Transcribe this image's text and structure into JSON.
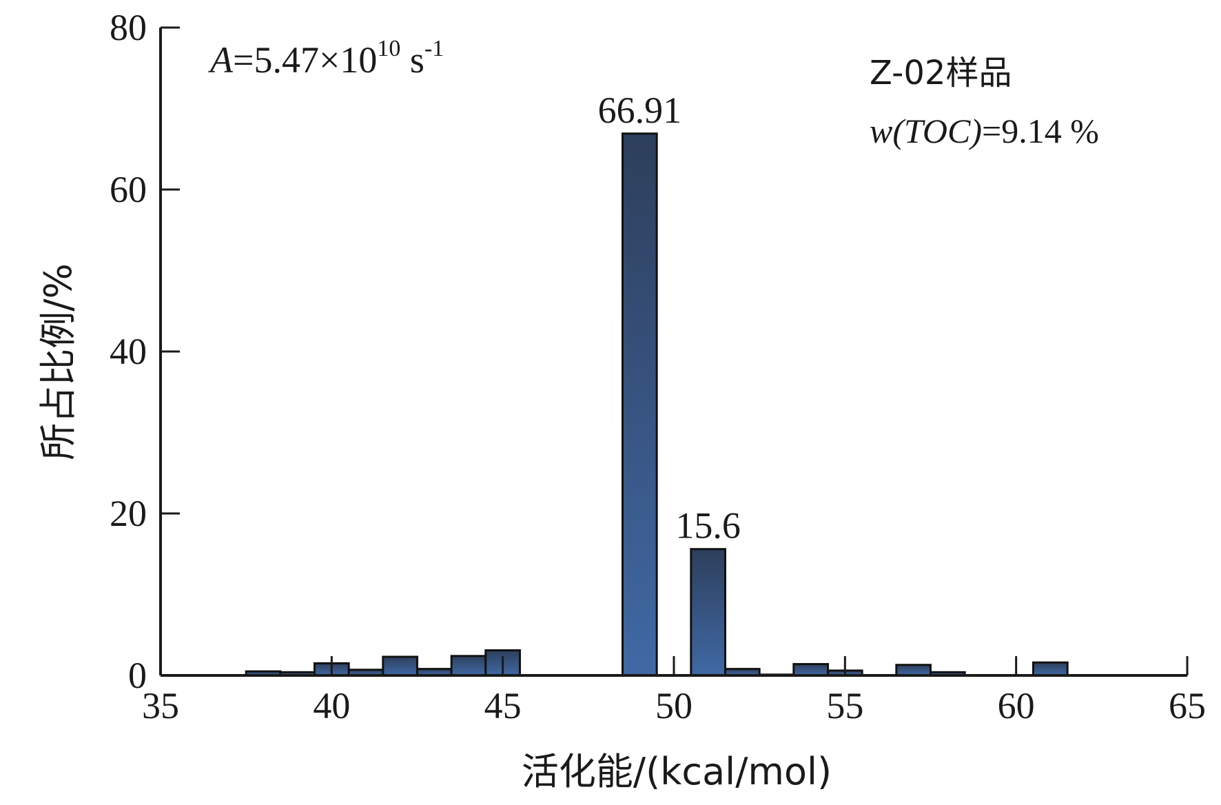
{
  "chart_data": {
    "type": "bar",
    "xlabel": "活化能/(kcal/mol)",
    "ylabel": "所占比例/%",
    "xlim": [
      35,
      65
    ],
    "ylim": [
      0,
      80
    ],
    "xticks": [
      35,
      40,
      45,
      50,
      55,
      60,
      65
    ],
    "yticks": [
      0,
      20,
      40,
      60,
      80
    ],
    "bar_width": 1,
    "bars": [
      {
        "x": 38,
        "value": 0.5
      },
      {
        "x": 39,
        "value": 0.4
      },
      {
        "x": 40,
        "value": 1.5
      },
      {
        "x": 41,
        "value": 0.7
      },
      {
        "x": 42,
        "value": 2.3
      },
      {
        "x": 43,
        "value": 0.8
      },
      {
        "x": 44,
        "value": 2.4
      },
      {
        "x": 45,
        "value": 3.1
      },
      {
        "x": 49,
        "value": 66.91,
        "label": "66.91"
      },
      {
        "x": 51,
        "value": 15.6,
        "label": "15.6"
      },
      {
        "x": 52,
        "value": 0.8
      },
      {
        "x": 53,
        "value": 0.1
      },
      {
        "x": 54,
        "value": 1.4
      },
      {
        "x": 55,
        "value": 0.6
      },
      {
        "x": 57,
        "value": 1.3
      },
      {
        "x": 58,
        "value": 0.4
      },
      {
        "x": 61,
        "value": 1.6
      }
    ],
    "annotations": {
      "prefactor": {
        "symbol": "A",
        "text": "=5.47×10",
        "exp": "10",
        "unit": " s",
        "unit_exp": "-1"
      },
      "sample": "Z-02样品",
      "toc": {
        "italic": "w(TOC)",
        "text": "=9.14 %"
      }
    },
    "colors": {
      "bar_top": "#2d3f5c",
      "bar_bottom": "#4069a5",
      "axis": "#1a1a1a"
    }
  }
}
